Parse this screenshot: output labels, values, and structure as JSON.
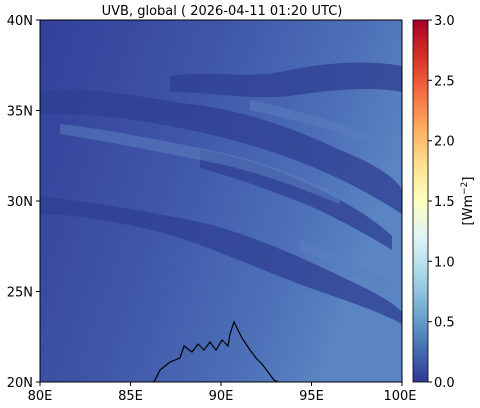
{
  "title": "UVB, global ( 2026-04-11 01:20 UTC)",
  "map": {
    "lon_ticks": [
      "80E",
      "85E",
      "90E",
      "95E",
      "100E"
    ],
    "lat_ticks": [
      "40N",
      "35N",
      "30N",
      "25N",
      "20N"
    ],
    "lon_range": [
      80,
      100
    ],
    "lat_range": [
      20,
      40
    ]
  },
  "colorbar": {
    "label_base": "[Wm",
    "label_sup": "−2",
    "label_end": "]",
    "ticks": [
      "3.0",
      "2.5",
      "2.0",
      "1.5",
      "1.0",
      "0.5",
      "0.0"
    ],
    "range": [
      0,
      3
    ],
    "colormap": "RdYlBu_r",
    "colors": [
      "#313695",
      "#4575b4",
      "#74add1",
      "#abd9e9",
      "#e0f3f8",
      "#ffffbf",
      "#fee090",
      "#fdae61",
      "#f46d43",
      "#d73027",
      "#a50026"
    ]
  },
  "field_colors": {
    "low": "#3a4aa0",
    "mid": "#4a6ab4",
    "high": "#5c86c2",
    "cloud": "#2f3f93"
  }
}
